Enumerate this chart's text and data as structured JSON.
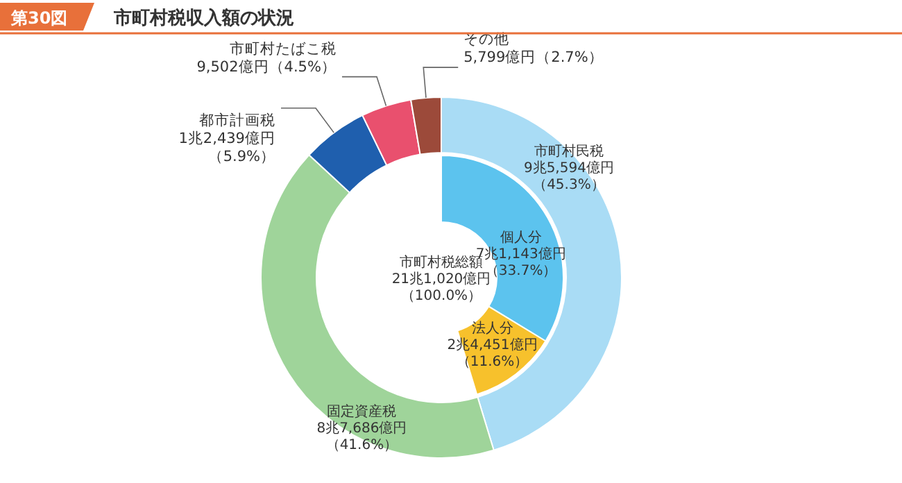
{
  "chart_data": [
    {
      "type": "donut",
      "title": "市町村税収入額の状況",
      "annotations": [
        "第30図",
        "市町村税総額",
        "21兆1,020億円（100.0%）"
      ],
      "categories": [
        "市町村民税",
        "固定資産税",
        "都市計画税",
        "市町村たばこ税",
        "その他"
      ],
      "values": [
        45.3,
        41.6,
        5.9,
        4.5,
        2.7
      ],
      "colors": [
        "#a9dcf5",
        "#9fd49a",
        "#1f5fae",
        "#e9506e",
        "#9c4a3a"
      ],
      "value_labels": [
        "9兆5,594億円（45.3%）",
        "8兆7,686億円（41.6%）",
        "1兆2,439億円（5.9%）",
        "9,502億円（4.5%）",
        "5,799億円（2.7%）"
      ]
    },
    {
      "type": "donut",
      "categories": [
        "個人分",
        "法人分"
      ],
      "values": [
        33.7,
        11.6
      ],
      "colors": [
        "#5cc3ee",
        "#f7c12c"
      ],
      "value_labels": [
        "7兆1,143億円（33.7%）",
        "2兆4,451億円（11.6%）"
      ]
    }
  ]
}
